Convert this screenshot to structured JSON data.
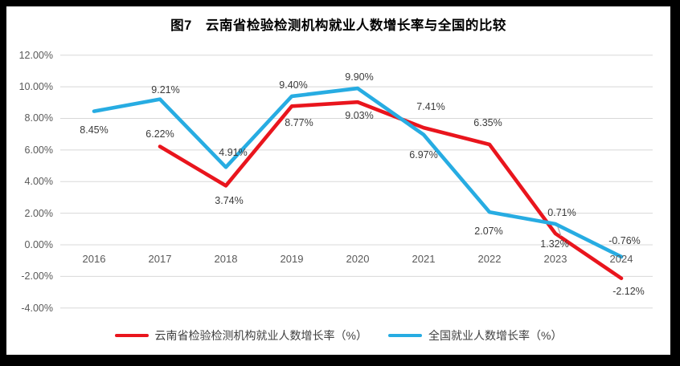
{
  "title": "图7　云南省检验检测机构就业人数增长率与全国的比较",
  "frame_color": "#000000",
  "panel_color": "#ffffff",
  "chart_data": {
    "type": "line",
    "title": "图7　云南省检验检测机构就业人数增长率与全国的比较",
    "categories": [
      "2016",
      "2017",
      "2018",
      "2019",
      "2020",
      "2021",
      "2022",
      "2023",
      "2024"
    ],
    "series": [
      {
        "name": "云南省检验检测机构就业人数增长率（%）",
        "color": "#e9151d",
        "values": [
          null,
          6.22,
          3.74,
          8.77,
          9.03,
          7.41,
          6.35,
          0.71,
          -2.12
        ],
        "data_labels": [
          null,
          "6.22%",
          "3.74%",
          "8.77%",
          "9.03%",
          "7.41%",
          "6.35%",
          "0.71%",
          "-2.12%"
        ],
        "label_offsets": [
          null,
          [
            0,
            -16
          ],
          [
            4,
            19
          ],
          [
            9,
            21
          ],
          [
            2,
            17
          ],
          [
            9,
            -26
          ],
          [
            -2,
            -27
          ],
          [
            8,
            -26
          ],
          [
            9,
            16
          ]
        ]
      },
      {
        "name": "全国就业人数增长率（%）",
        "color": "#27ace2",
        "values": [
          8.45,
          9.21,
          4.91,
          9.4,
          9.9,
          6.97,
          2.07,
          1.32,
          -0.76
        ],
        "data_labels": [
          "8.45%",
          "9.21%",
          "4.91%",
          "9.40%",
          "9.90%",
          "6.97%",
          "2.07%",
          "1.32%",
          "-0.76%"
        ],
        "label_offsets": [
          [
            0,
            23
          ],
          [
            7,
            -12
          ],
          [
            9,
            -18
          ],
          [
            2,
            -14
          ],
          [
            2,
            -14
          ],
          [
            0,
            25
          ],
          [
            -1,
            24
          ],
          [
            -1,
            25
          ],
          [
            4,
            -20
          ]
        ],
        "leader_line_at": 7
      }
    ],
    "ylim": [
      -4,
      12
    ],
    "ytick_step": 2,
    "ytick_labels": [
      "12.00%",
      "10.00%",
      "8.00%",
      "6.00%",
      "4.00%",
      "2.00%",
      "0.00%",
      "-2.00%",
      "-4.00%"
    ],
    "grid": true,
    "gridline_color": "#d8d8d8",
    "leader_line_color": "#a6a6a6",
    "legend_position": "bottom"
  }
}
